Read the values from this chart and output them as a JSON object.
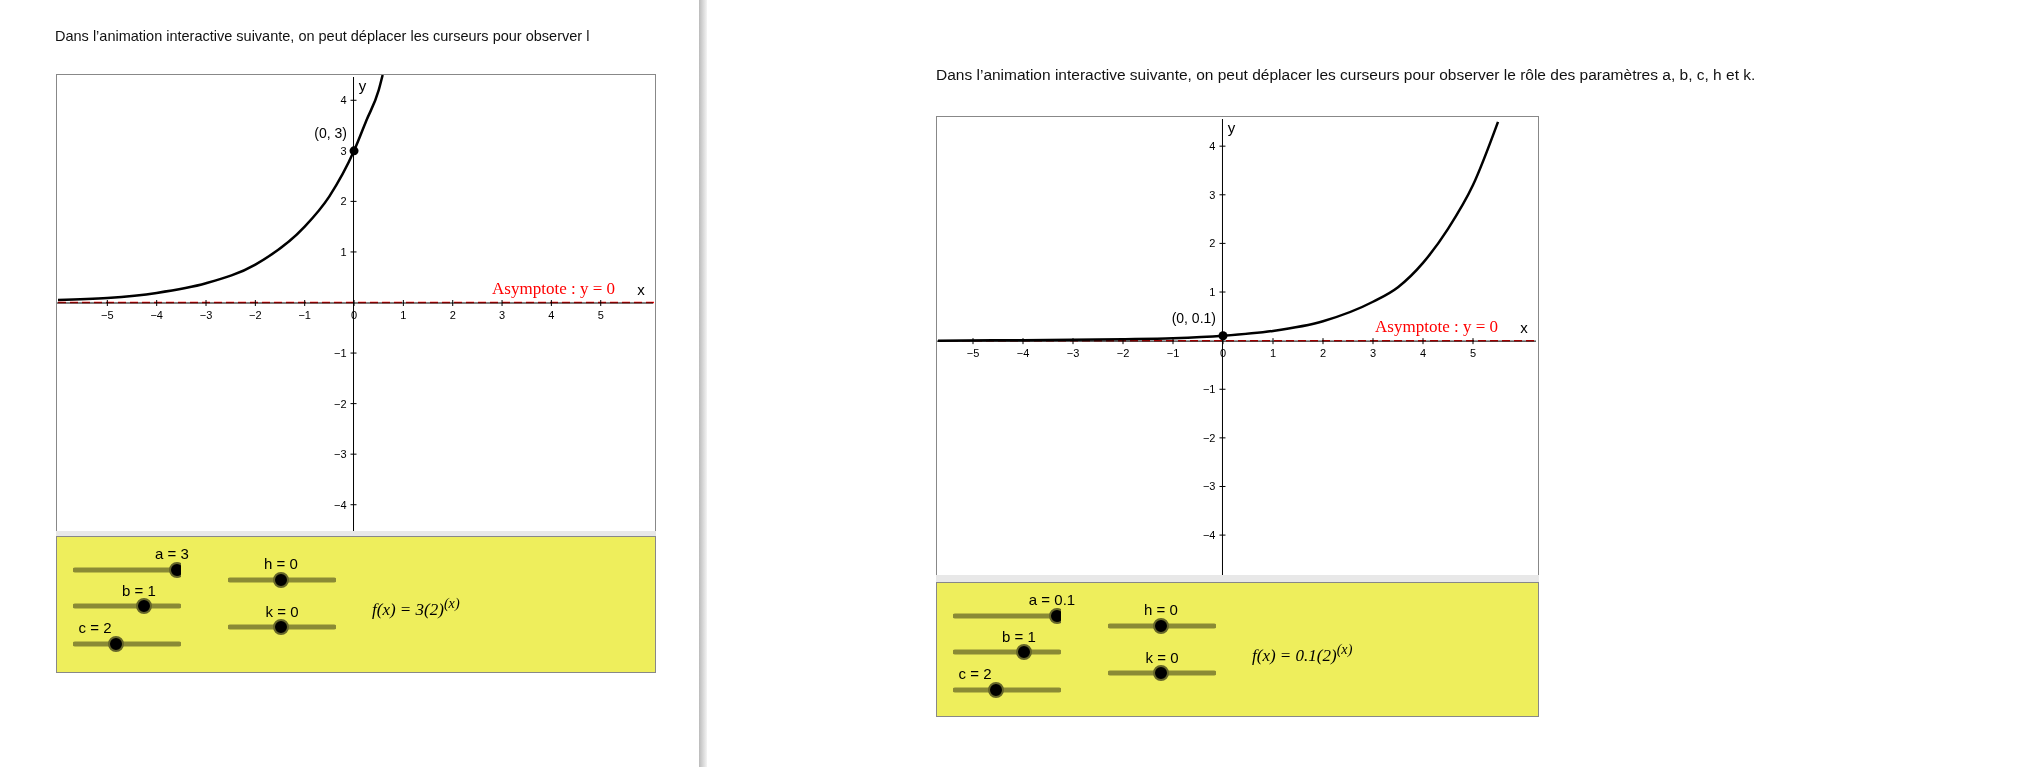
{
  "chart_data": [
    {
      "type": "line",
      "title": "Dans l’animation interactive suivante, on peut déplacer les curseurs pour observer l",
      "xlabel": "x",
      "ylabel": "y",
      "xlim": [
        -6,
        6.1
      ],
      "ylim": [
        -4.5,
        4.5
      ],
      "xticks": [
        {
          "value": -5,
          "label": "−5"
        },
        {
          "value": -4,
          "label": "−4"
        },
        {
          "value": -3,
          "label": "−3"
        },
        {
          "value": -2,
          "label": "−2"
        },
        {
          "value": -1,
          "label": "−1"
        },
        0,
        1,
        2,
        3,
        4,
        5
      ],
      "yticks": [
        {
          "value": -4,
          "label": "−4"
        },
        {
          "value": -3,
          "label": "−3"
        },
        {
          "value": -2,
          "label": "−2"
        },
        {
          "value": -1,
          "label": "−1"
        },
        1,
        2,
        3,
        4
      ],
      "series": [
        {
          "type": "line",
          "color": "#000000",
          "x": [
            -6,
            -5,
            -4,
            -3,
            -2,
            -1,
            -0.5,
            0,
            0.25,
            0.5,
            0.58
          ],
          "values": [
            0.05,
            0.09,
            0.19,
            0.38,
            0.75,
            1.5,
            2.1,
            3,
            3.6,
            4.2,
            4.5
          ]
        },
        {
          "type": "scatter",
          "color": "#000000",
          "marker": "circle",
          "x": [
            0
          ],
          "values": [
            3
          ]
        }
      ],
      "ref_lines": [
        {
          "axis": "y",
          "value": 0,
          "label": "Asymptote : y = 0",
          "color": "#ff0000",
          "line_style": "dashed"
        }
      ],
      "annotations": [
        {
          "text": "(0, 3)",
          "x": 0,
          "y": 3
        },
        "a = 3",
        "b = 1",
        "c = 2",
        "h = 0",
        "k = 0",
        "f(x) = 3(2)$^{(x)}$"
      ]
    },
    {
      "type": "line",
      "title": "Dans l’animation interactive suivante, on peut déplacer les curseurs pour observer le rôle des paramètres a, b, c, h et k.",
      "xlabel": "x",
      "ylabel": "y",
      "xlim": [
        -5.7,
        6.3
      ],
      "ylim": [
        -4.8,
        4.6
      ],
      "xticks": [
        {
          "value": -5,
          "label": "−5"
        },
        {
          "value": -4,
          "label": "−4"
        },
        {
          "value": -3,
          "label": "−3"
        },
        {
          "value": -2,
          "label": "−2"
        },
        {
          "value": -1,
          "label": "−1"
        },
        0,
        1,
        2,
        3,
        4,
        5
      ],
      "yticks": [
        {
          "value": -4,
          "label": "−4"
        },
        {
          "value": -3,
          "label": "−3"
        },
        {
          "value": -2,
          "label": "−2"
        },
        {
          "value": -1,
          "label": "−1"
        },
        1,
        2,
        3,
        4
      ],
      "series": [
        {
          "type": "line",
          "color": "#000000",
          "x": [
            -5.7,
            -4,
            -2,
            -1,
            0,
            1,
            2,
            3,
            3.5,
            4,
            4.5,
            5,
            5.5
          ],
          "values": [
            0,
            0.01,
            0.03,
            0.05,
            0.1,
            0.2,
            0.4,
            0.8,
            1.1,
            1.6,
            2.3,
            3.2,
            4.5
          ]
        },
        {
          "type": "scatter",
          "color": "#000000",
          "marker": "circle",
          "x": [
            0
          ],
          "values": [
            0.1
          ]
        }
      ],
      "ref_lines": [
        {
          "axis": "y",
          "value": 0,
          "label": "Asymptote : y = 0",
          "color": "#ff0000",
          "line_style": "dashed"
        }
      ],
      "annotations": [
        {
          "text": "(0, 0.1)",
          "x": 0,
          "y": 0.1
        },
        "a = 0.1",
        "b = 1",
        "c = 2",
        "h = 0",
        "k = 0",
        "f(x) = 0.1(2)$^{(x)}$"
      ]
    }
  ]
}
